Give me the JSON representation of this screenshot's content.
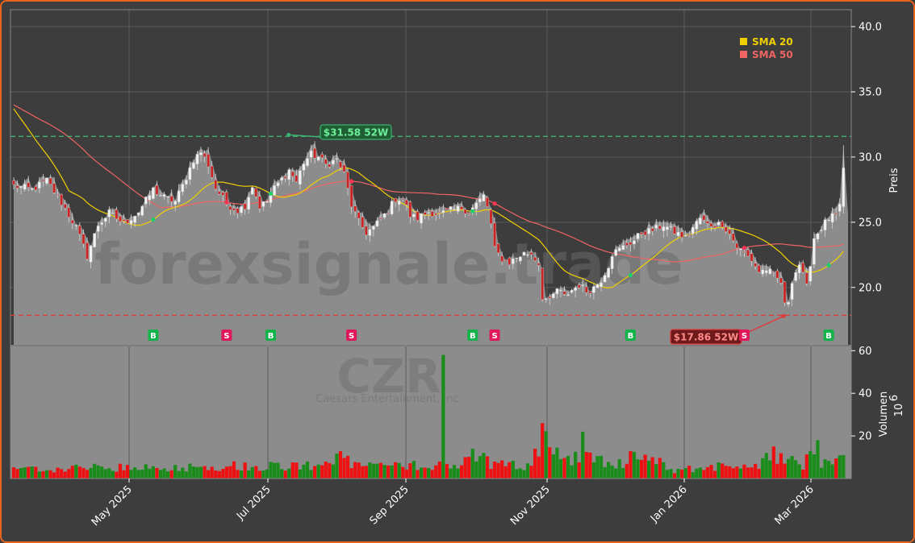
{
  "chart_data": {
    "type": "candlestick",
    "ticker": "CZR",
    "company": "Caesars Entertainment, Inc.",
    "watermark": "forexsignale.trade",
    "price_axis": {
      "label": "Preis",
      "range": [
        15.6,
        41.3
      ],
      "ticks": [
        "20.0",
        "25.0",
        "30.0",
        "35.0",
        "40.0"
      ]
    },
    "volume_axis": {
      "label": "Volumen",
      "exponent": "10",
      "exponent_power": "6",
      "range": [
        0,
        62
      ],
      "ticks": [
        "20",
        "40",
        "60"
      ]
    },
    "x_axis": {
      "ticks": [
        "May 2025",
        "Jul 2025",
        "Sep 2025",
        "Nov 2025",
        "Jan 2026",
        "Mar 2026"
      ]
    },
    "high_52w": {
      "value": 31.58,
      "label": "$31.58 52W"
    },
    "low_52w": {
      "value": 17.86,
      "label": "$17.86 52W"
    },
    "legend": [
      {
        "name": "SMA 20",
        "color": "#f0d000"
      },
      {
        "name": "SMA 50",
        "color": "#f06464"
      }
    ],
    "close_anchors": [
      [
        0,
        27.8
      ],
      [
        5,
        27.5
      ],
      [
        9,
        28.2
      ],
      [
        13,
        26.5
      ],
      [
        17,
        24.6
      ],
      [
        20,
        22.4
      ],
      [
        23,
        24.8
      ],
      [
        26,
        25.7
      ],
      [
        30,
        24.9
      ],
      [
        34,
        25.8
      ],
      [
        38,
        27.5
      ],
      [
        41,
        26.9
      ],
      [
        44,
        26.6
      ],
      [
        46,
        27.8
      ],
      [
        49,
        29.8
      ],
      [
        51,
        30.4
      ],
      [
        53,
        29.4
      ],
      [
        55,
        27.6
      ],
      [
        58,
        26.4
      ],
      [
        61,
        25.9
      ],
      [
        63,
        26.3
      ],
      [
        65,
        27.8
      ],
      [
        67,
        26.2
      ],
      [
        69,
        26.6
      ],
      [
        71,
        27.6
      ],
      [
        73,
        28.3
      ],
      [
        75,
        29.0
      ],
      [
        77,
        28.1
      ],
      [
        79,
        29.6
      ],
      [
        81,
        30.2
      ],
      [
        83,
        30.0
      ],
      [
        85,
        29.4
      ],
      [
        88,
        29.8
      ],
      [
        90,
        28.7
      ],
      [
        92,
        26.3
      ],
      [
        94,
        25.0
      ],
      [
        96,
        24.2
      ],
      [
        98,
        24.6
      ],
      [
        100,
        25.2
      ],
      [
        102,
        25.9
      ],
      [
        104,
        26.8
      ],
      [
        106,
        26.8
      ],
      [
        108,
        25.5
      ],
      [
        110,
        25.3
      ],
      [
        113,
        25.8
      ],
      [
        116,
        25.6
      ],
      [
        119,
        25.9
      ],
      [
        122,
        26.1
      ],
      [
        124,
        25.8
      ],
      [
        126,
        26.4
      ],
      [
        128,
        27.0
      ],
      [
        129,
        26.2
      ],
      [
        130,
        24.8
      ],
      [
        131,
        22.9
      ],
      [
        133,
        22.2
      ],
      [
        135,
        21.9
      ],
      [
        137,
        22.3
      ],
      [
        139,
        22.6
      ],
      [
        141,
        22.6
      ],
      [
        143,
        21.8
      ],
      [
        144,
        19.3
      ],
      [
        146,
        18.9
      ],
      [
        148,
        19.9
      ],
      [
        150,
        19.3
      ],
      [
        152,
        19.8
      ],
      [
        154,
        20.2
      ],
      [
        156,
        19.7
      ],
      [
        158,
        20.0
      ],
      [
        160,
        20.6
      ],
      [
        162,
        21.7
      ],
      [
        163,
        22.6
      ],
      [
        165,
        22.9
      ],
      [
        167,
        23.3
      ],
      [
        169,
        23.6
      ],
      [
        171,
        24.2
      ],
      [
        173,
        24.3
      ],
      [
        175,
        24.5
      ],
      [
        177,
        24.8
      ],
      [
        179,
        24.4
      ],
      [
        181,
        24.1
      ],
      [
        183,
        23.8
      ],
      [
        185,
        24.6
      ],
      [
        187,
        25.3
      ],
      [
        189,
        24.8
      ],
      [
        191,
        24.8
      ],
      [
        193,
        24.9
      ],
      [
        195,
        24.1
      ],
      [
        197,
        23.1
      ],
      [
        199,
        22.6
      ],
      [
        201,
        22.1
      ],
      [
        203,
        21.2
      ],
      [
        205,
        21.4
      ],
      [
        207,
        20.9
      ],
      [
        209,
        20.4
      ],
      [
        210,
        18.6
      ],
      [
        211,
        19.0
      ],
      [
        212,
        20.6
      ],
      [
        214,
        21.8
      ],
      [
        216,
        20.0
      ],
      [
        218,
        23.8
      ],
      [
        220,
        24.6
      ],
      [
        222,
        25.3
      ],
      [
        224,
        25.5
      ],
      [
        225,
        26.1
      ],
      [
        226,
        29.0
      ]
    ],
    "volume_anchors": [
      [
        0,
        4
      ],
      [
        20,
        5
      ],
      [
        40,
        5
      ],
      [
        60,
        6
      ],
      [
        80,
        6
      ],
      [
        86,
        9
      ],
      [
        88,
        10
      ],
      [
        92,
        7
      ],
      [
        100,
        6
      ],
      [
        110,
        6
      ],
      [
        118,
        7
      ],
      [
        120,
        5
      ],
      [
        122,
        8
      ],
      [
        126,
        11
      ],
      [
        130,
        7
      ],
      [
        140,
        6
      ],
      [
        142,
        9
      ],
      [
        145,
        20
      ],
      [
        147,
        12
      ],
      [
        150,
        9
      ],
      [
        155,
        11
      ],
      [
        160,
        8
      ],
      [
        165,
        7
      ],
      [
        170,
        11
      ],
      [
        175,
        9
      ],
      [
        180,
        4
      ],
      [
        195,
        6
      ],
      [
        200,
        5
      ],
      [
        205,
        8
      ],
      [
        207,
        11
      ],
      [
        210,
        9
      ],
      [
        215,
        6
      ],
      [
        218,
        17
      ],
      [
        220,
        6
      ],
      [
        226,
        14
      ]
    ],
    "volume_spikes": [
      [
        117,
        58
      ],
      [
        144,
        26
      ],
      [
        155,
        22
      ],
      [
        142,
        14
      ],
      [
        125,
        14
      ],
      [
        205,
        12
      ],
      [
        219,
        18
      ]
    ],
    "markers": [
      {
        "type": "B",
        "day": 38
      },
      {
        "type": "S",
        "day": 58
      },
      {
        "type": "B",
        "day": 70
      },
      {
        "type": "S",
        "day": 92
      },
      {
        "type": "B",
        "day": 125
      },
      {
        "type": "S",
        "day": 131
      },
      {
        "type": "B",
        "day": 168
      },
      {
        "type": "S",
        "day": 199
      },
      {
        "type": "B",
        "day": 222
      }
    ],
    "colors": {
      "up": "#1a8c1a",
      "down": "#ee1111",
      "background": "#3d3d3d",
      "area": "#8c8c8c",
      "high_line": "#3cb371",
      "low_line": "#e03c3c"
    }
  }
}
